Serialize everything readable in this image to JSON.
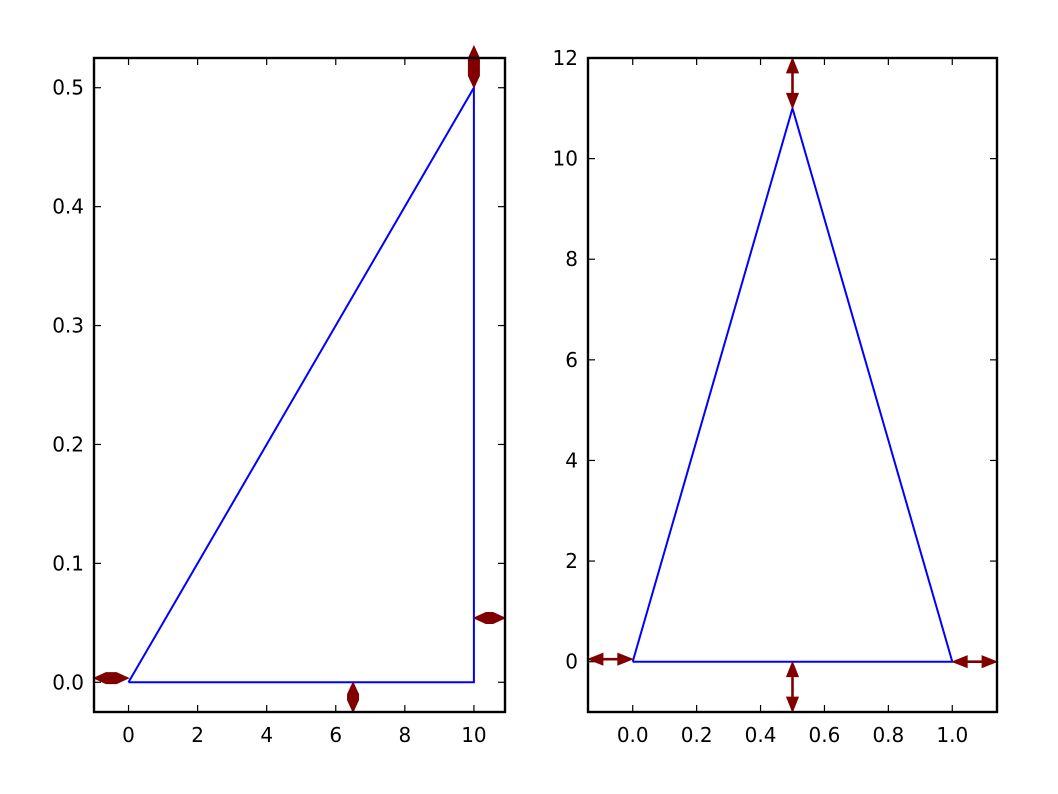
{
  "colors": {
    "line": "#0000ff",
    "arrow": "#800000",
    "axes": "#000000",
    "background": "#ffffff"
  },
  "chart_data": [
    {
      "type": "line",
      "title": "",
      "xlabel": "",
      "ylabel": "",
      "xlim": [
        -1,
        10.9
      ],
      "ylim": [
        -0.025,
        0.525
      ],
      "xticks": [
        0,
        2,
        4,
        6,
        8,
        10
      ],
      "xtick_labels": [
        "0",
        "2",
        "4",
        "6",
        "8",
        "10"
      ],
      "yticks": [
        0.0,
        0.1,
        0.2,
        0.3,
        0.4,
        0.5
      ],
      "ytick_labels": [
        "0.0",
        "0.1",
        "0.2",
        "0.3",
        "0.4",
        "0.5"
      ],
      "grid": false,
      "series": [
        {
          "x": [
            0,
            10,
            10,
            0
          ],
          "y": [
            0,
            0.5,
            0,
            0
          ]
        }
      ],
      "annotations": [
        {
          "type": "double-arrow",
          "style": "fancy",
          "direction": "vertical",
          "x": 10,
          "y_range": [
            0.5,
            0.535
          ]
        },
        {
          "type": "double-arrow",
          "style": "fancy",
          "direction": "horizontal",
          "y": 0.0035,
          "x_range": [
            -1,
            0
          ]
        },
        {
          "type": "double-arrow",
          "style": "fancy",
          "direction": "horizontal",
          "y": 0.054,
          "x_range": [
            10,
            10.9
          ]
        },
        {
          "type": "double-arrow",
          "style": "fancy",
          "direction": "vertical",
          "x": 6.5,
          "y_range": [
            -0.025,
            0
          ]
        }
      ]
    },
    {
      "type": "line",
      "title": "",
      "xlabel": "",
      "ylabel": "",
      "xlim": [
        -0.14,
        1.14
      ],
      "ylim": [
        -1,
        12
      ],
      "xticks": [
        0.0,
        0.2,
        0.4,
        0.6,
        0.8,
        1.0
      ],
      "xtick_labels": [
        "0.0",
        "0.2",
        "0.4",
        "0.6",
        "0.8",
        "1.0"
      ],
      "yticks": [
        0,
        2,
        4,
        6,
        8,
        10,
        12
      ],
      "ytick_labels": [
        "0",
        "2",
        "4",
        "6",
        "8",
        "10",
        "12"
      ],
      "grid": false,
      "series": [
        {
          "x": [
            0,
            0.5,
            1,
            0
          ],
          "y": [
            0,
            11,
            0,
            0
          ]
        }
      ],
      "annotations": [
        {
          "type": "double-arrow",
          "style": "simple",
          "direction": "vertical",
          "x": 0.5,
          "y_range": [
            11,
            12
          ]
        },
        {
          "type": "double-arrow",
          "style": "simple",
          "direction": "horizontal",
          "y": 0.05,
          "x_range": [
            -0.14,
            0
          ]
        },
        {
          "type": "double-arrow",
          "style": "simple",
          "direction": "horizontal",
          "y": 0,
          "x_range": [
            1,
            1.14
          ]
        },
        {
          "type": "double-arrow",
          "style": "simple",
          "direction": "vertical",
          "x": 0.5,
          "y_range": [
            -1,
            0
          ]
        }
      ]
    }
  ]
}
